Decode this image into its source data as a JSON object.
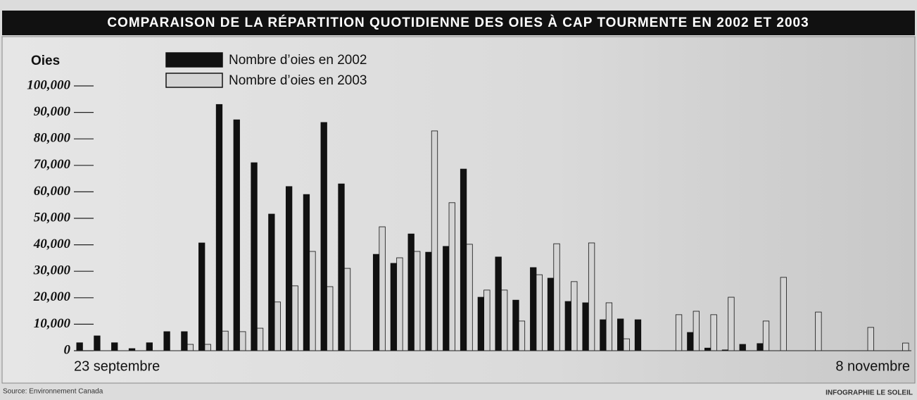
{
  "chart_data": {
    "type": "bar",
    "title": "COMPARAISON DE LA RÉPARTITION QUOTIDIENNE DES OIES À CAP TOURMENTE EN 2002 ET 2003",
    "y_label": "Oies",
    "source": "Source: Environnement Canada",
    "credit": "INFOGRAPHIE LE SOLEIL",
    "categories": [
      "23 septembre",
      null,
      null,
      null,
      null,
      null,
      null,
      null,
      null,
      null,
      null,
      null,
      null,
      null,
      null,
      null,
      null,
      null,
      null,
      null,
      null,
      null,
      null,
      null,
      null,
      null,
      null,
      null,
      null,
      null,
      null,
      null,
      null,
      null,
      null,
      null,
      null,
      null,
      null,
      null,
      null,
      null,
      null,
      null,
      null,
      null,
      null,
      "8 novembre"
    ],
    "series": [
      {
        "name": "Nombre d’oies en 2002",
        "color": "#111111",
        "values": [
          3000,
          5600,
          3000,
          800,
          3000,
          7200,
          7200,
          40700,
          93000,
          87200,
          71000,
          51600,
          62000,
          59000,
          86200,
          63000,
          null,
          36400,
          33000,
          44100,
          37200,
          39400,
          68600,
          20200,
          35400,
          19100,
          31400,
          27400,
          18600,
          18100,
          11700,
          12000,
          11700,
          null,
          null,
          6900,
          1000,
          300,
          2400,
          2700,
          null,
          null,
          null,
          null,
          null,
          null,
          null,
          null
        ]
      },
      {
        "name": "Nombre d’oies en 2003",
        "color": "#d4d4d4",
        "values": [
          null,
          null,
          null,
          null,
          null,
          null,
          2400,
          2400,
          7400,
          7200,
          8500,
          18400,
          24500,
          37500,
          24200,
          31100,
          null,
          46800,
          35100,
          37500,
          83000,
          55900,
          40200,
          22900,
          22900,
          11200,
          28700,
          40400,
          26100,
          40700,
          18100,
          4500,
          null,
          null,
          13600,
          14900,
          13600,
          20200,
          null,
          11200,
          27700,
          null,
          14600,
          null,
          null,
          8800,
          null,
          2900
        ]
      }
    ],
    "ylim": [
      0,
      100000
    ],
    "yticks": [
      {
        "value": 0,
        "label": "0"
      },
      {
        "value": 10000,
        "label": "10,000"
      },
      {
        "value": 20000,
        "label": "20,000"
      },
      {
        "value": 30000,
        "label": "30,000"
      },
      {
        "value": 40000,
        "label": "40,000"
      },
      {
        "value": 50000,
        "label": "50,000"
      },
      {
        "value": 60000,
        "label": "60,000"
      },
      {
        "value": 70000,
        "label": "70,000"
      },
      {
        "value": 80000,
        "label": "80,000"
      },
      {
        "value": 90000,
        "label": "90,000"
      },
      {
        "value": 100000,
        "label": "100,000"
      }
    ],
    "legend": "top-left"
  }
}
